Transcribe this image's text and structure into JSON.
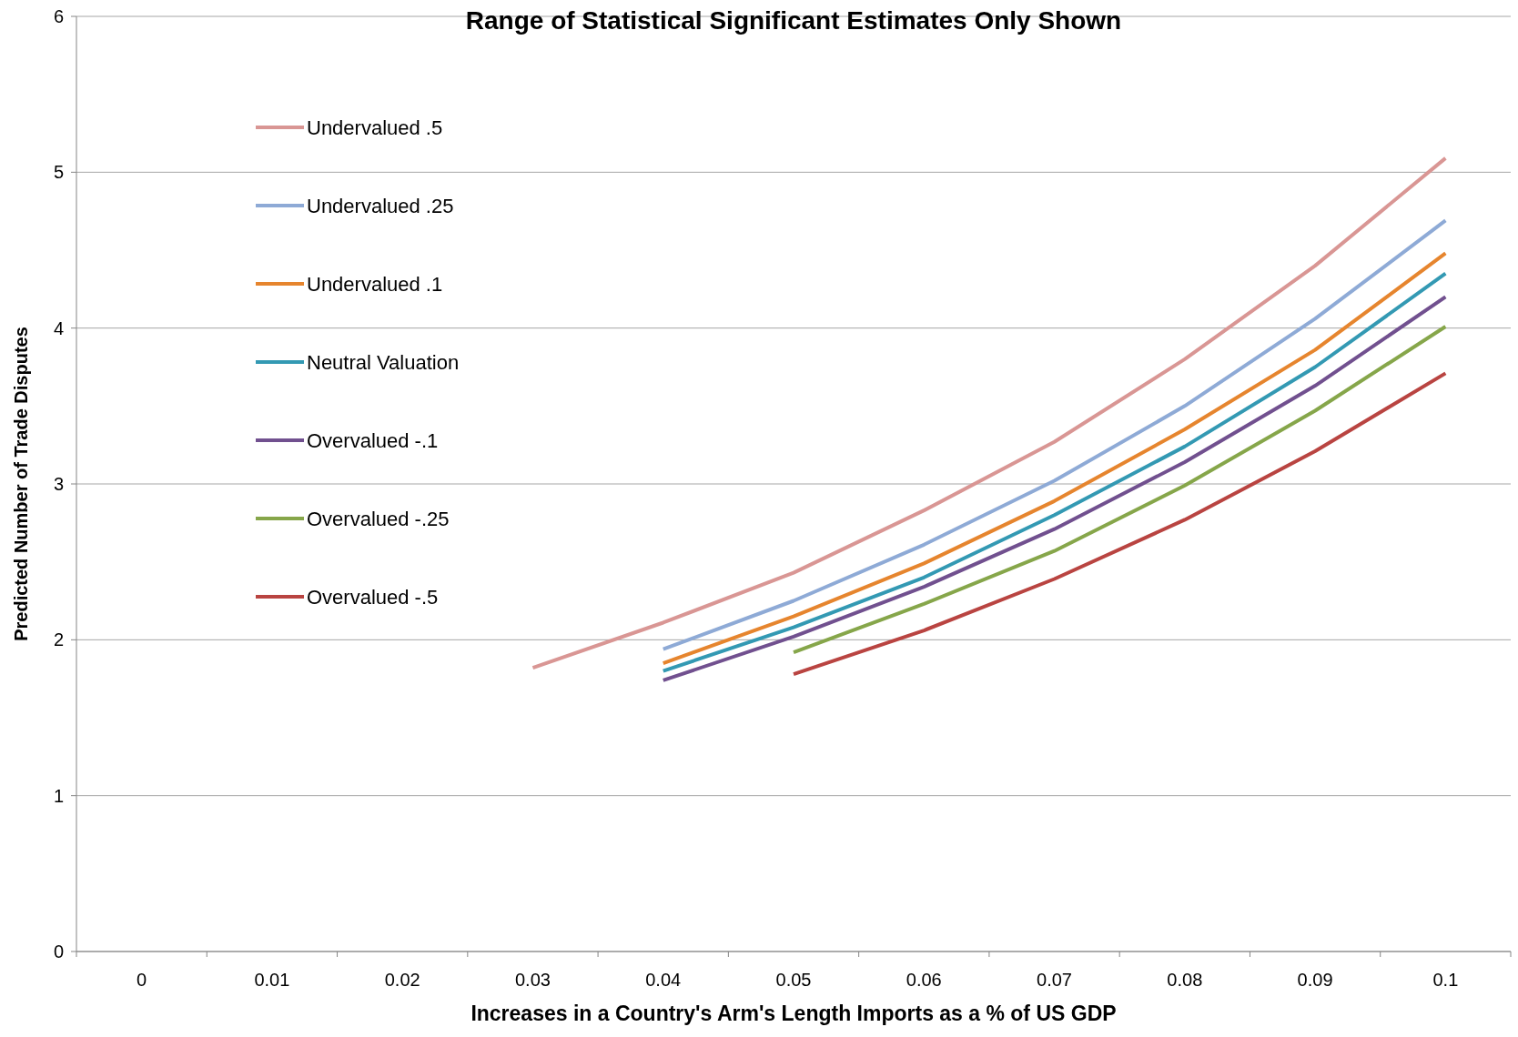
{
  "chart_data": {
    "type": "line",
    "title": "Range of Statistical Significant Estimates Only Shown",
    "xlabel": "Increases in a Country's Arm's Length Imports as a % of US GDP",
    "ylabel": "Predicted Number of Trade Disputes",
    "categories": [
      "0",
      "0.01",
      "0.02",
      "0.03",
      "0.04",
      "0.05",
      "0.06",
      "0.07",
      "0.08",
      "0.09",
      "0.1"
    ],
    "ylim": [
      0,
      6
    ],
    "yticks": [
      0,
      1,
      2,
      3,
      4,
      5,
      6
    ],
    "grid": "y",
    "legend": "top left",
    "marker": "none",
    "line_style": "solid",
    "series": [
      {
        "name": "Undervalued .5",
        "color": "#d99694",
        "values": [
          null,
          null,
          null,
          1.82,
          2.11,
          2.43,
          2.83,
          3.27,
          3.8,
          4.4,
          5.09
        ]
      },
      {
        "name": "Undervalued .25",
        "color": "#8eaad6",
        "values": [
          null,
          null,
          null,
          null,
          1.94,
          2.25,
          2.61,
          3.02,
          3.5,
          4.06,
          4.69
        ]
      },
      {
        "name": "Undervalued .1",
        "color": "#e6852e",
        "values": [
          null,
          null,
          null,
          null,
          1.85,
          2.15,
          2.49,
          2.89,
          3.35,
          3.86,
          4.48
        ]
      },
      {
        "name": "Neutral Valuation",
        "color": "#3399b3",
        "values": [
          null,
          null,
          null,
          null,
          1.8,
          2.08,
          2.4,
          2.8,
          3.24,
          3.75,
          4.35
        ]
      },
      {
        "name": "Overvalued -.1",
        "color": "#71508f",
        "values": [
          null,
          null,
          null,
          null,
          1.74,
          2.02,
          2.34,
          2.71,
          3.14,
          3.63,
          4.2
        ]
      },
      {
        "name": "Overvalued -.25",
        "color": "#86a64a",
        "values": [
          null,
          null,
          null,
          null,
          null,
          1.92,
          2.23,
          2.57,
          2.99,
          3.47,
          4.01
        ]
      },
      {
        "name": "Overvalued -.5",
        "color": "#b94441",
        "values": [
          null,
          null,
          null,
          null,
          null,
          1.78,
          2.06,
          2.39,
          2.77,
          3.21,
          3.71
        ]
      }
    ]
  }
}
